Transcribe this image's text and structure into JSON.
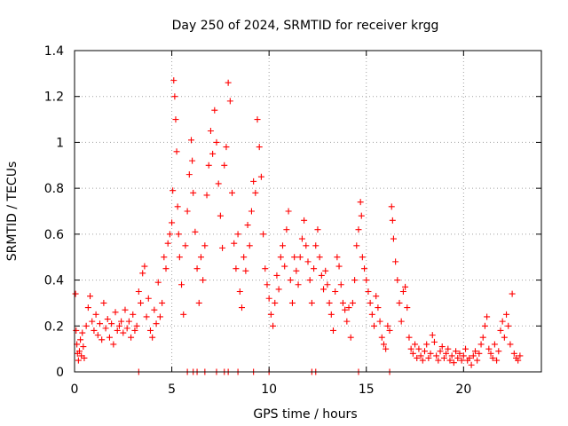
{
  "chart_data": {
    "type": "scatter",
    "title": "Day 250 of 2024, SRMTID for receiver krgg",
    "xlabel": "GPS time / hours",
    "ylabel": "SRMTID / TECUs",
    "xlim": [
      0,
      24
    ],
    "ylim": [
      0,
      1.4
    ],
    "xticks": [
      0,
      5,
      10,
      15,
      20
    ],
    "xtick_labels": [
      "0",
      "5",
      "10",
      "15",
      "20"
    ],
    "yticks": [
      0,
      0.2,
      0.4,
      0.6,
      0.8,
      1.0,
      1.2,
      1.4
    ],
    "ytick_labels": [
      "0",
      "0.2",
      "0.4",
      "0.6",
      "0.8",
      "1",
      "1.2",
      "1.4"
    ],
    "grid": true,
    "marker": "plus",
    "color": "#ff0000",
    "series": [
      {
        "name": "SRMTID",
        "points": [
          [
            0.05,
            0.34
          ],
          [
            0.08,
            0.18
          ],
          [
            0.12,
            0.12
          ],
          [
            0.15,
            0.08
          ],
          [
            0.2,
            0.05
          ],
          [
            0.25,
            0.09
          ],
          [
            0.3,
            0.14
          ],
          [
            0.35,
            0.07
          ],
          [
            0.4,
            0.17
          ],
          [
            0.45,
            0.11
          ],
          [
            0.5,
            0.06
          ],
          [
            0.6,
            0.2
          ],
          [
            0.7,
            0.28
          ],
          [
            0.8,
            0.33
          ],
          [
            0.9,
            0.22
          ],
          [
            1.0,
            0.18
          ],
          [
            1.1,
            0.25
          ],
          [
            1.2,
            0.16
          ],
          [
            1.3,
            0.21
          ],
          [
            1.4,
            0.14
          ],
          [
            1.5,
            0.3
          ],
          [
            1.6,
            0.19
          ],
          [
            1.7,
            0.23
          ],
          [
            1.8,
            0.15
          ],
          [
            1.9,
            0.21
          ],
          [
            2.0,
            0.12
          ],
          [
            2.1,
            0.26
          ],
          [
            2.2,
            0.18
          ],
          [
            2.3,
            0.2
          ],
          [
            2.4,
            0.22
          ],
          [
            2.5,
            0.17
          ],
          [
            2.6,
            0.27
          ],
          [
            2.7,
            0.19
          ],
          [
            2.8,
            0.22
          ],
          [
            2.9,
            0.15
          ],
          [
            3.0,
            0.25
          ],
          [
            3.1,
            0.18
          ],
          [
            3.2,
            0.2
          ],
          [
            3.3,
            0.35
          ],
          [
            3.4,
            0.3
          ],
          [
            3.5,
            0.43
          ],
          [
            3.6,
            0.46
          ],
          [
            3.7,
            0.24
          ],
          [
            3.8,
            0.32
          ],
          [
            3.9,
            0.18
          ],
          [
            4.0,
            0.15
          ],
          [
            4.1,
            0.27
          ],
          [
            4.2,
            0.21
          ],
          [
            4.3,
            0.39
          ],
          [
            4.4,
            0.24
          ],
          [
            4.5,
            0.3
          ],
          [
            4.6,
            0.5
          ],
          [
            4.7,
            0.45
          ],
          [
            4.8,
            0.56
          ],
          [
            4.9,
            0.6
          ],
          [
            5.0,
            0.65
          ],
          [
            5.05,
            0.79
          ],
          [
            5.1,
            1.27
          ],
          [
            5.15,
            1.2
          ],
          [
            5.2,
            1.1
          ],
          [
            5.25,
            0.96
          ],
          [
            5.3,
            0.72
          ],
          [
            5.35,
            0.6
          ],
          [
            5.4,
            0.5
          ],
          [
            5.5,
            0.38
          ],
          [
            5.6,
            0.25
          ],
          [
            5.7,
            0.55
          ],
          [
            5.8,
            0.7
          ],
          [
            5.9,
            0.86
          ],
          [
            6.0,
            1.01
          ],
          [
            6.05,
            0.92
          ],
          [
            6.1,
            0.78
          ],
          [
            6.2,
            0.61
          ],
          [
            6.3,
            0.45
          ],
          [
            6.4,
            0.3
          ],
          [
            6.5,
            0.5
          ],
          [
            6.6,
            0.4
          ],
          [
            6.7,
            0.55
          ],
          [
            6.8,
            0.77
          ],
          [
            6.9,
            0.9
          ],
          [
            7.0,
            1.05
          ],
          [
            7.1,
            0.95
          ],
          [
            7.2,
            1.14
          ],
          [
            7.3,
            1.0
          ],
          [
            7.4,
            0.82
          ],
          [
            7.5,
            0.68
          ],
          [
            7.6,
            0.54
          ],
          [
            7.7,
            0.9
          ],
          [
            7.8,
            0.98
          ],
          [
            7.9,
            1.26
          ],
          [
            8.0,
            1.18
          ],
          [
            8.1,
            0.78
          ],
          [
            8.2,
            0.56
          ],
          [
            8.3,
            0.45
          ],
          [
            8.4,
            0.6
          ],
          [
            8.5,
            0.35
          ],
          [
            8.6,
            0.28
          ],
          [
            8.7,
            0.5
          ],
          [
            8.8,
            0.44
          ],
          [
            8.9,
            0.64
          ],
          [
            9.0,
            0.55
          ],
          [
            9.1,
            0.7
          ],
          [
            9.2,
            0.83
          ],
          [
            9.3,
            0.78
          ],
          [
            9.4,
            1.1
          ],
          [
            9.5,
            0.98
          ],
          [
            9.6,
            0.85
          ],
          [
            9.7,
            0.6
          ],
          [
            9.8,
            0.45
          ],
          [
            9.9,
            0.38
          ],
          [
            10.0,
            0.32
          ],
          [
            10.1,
            0.25
          ],
          [
            10.2,
            0.2
          ],
          [
            10.3,
            0.3
          ],
          [
            10.4,
            0.42
          ],
          [
            10.5,
            0.36
          ],
          [
            10.6,
            0.5
          ],
          [
            10.7,
            0.55
          ],
          [
            10.8,
            0.46
          ],
          [
            10.9,
            0.62
          ],
          [
            11.0,
            0.7
          ],
          [
            11.1,
            0.4
          ],
          [
            11.2,
            0.3
          ],
          [
            11.3,
            0.5
          ],
          [
            11.4,
            0.44
          ],
          [
            11.5,
            0.38
          ],
          [
            11.6,
            0.5
          ],
          [
            11.7,
            0.58
          ],
          [
            11.8,
            0.66
          ],
          [
            11.9,
            0.55
          ],
          [
            12.0,
            0.48
          ],
          [
            12.1,
            0.4
          ],
          [
            12.2,
            0.3
          ],
          [
            12.3,
            0.45
          ],
          [
            12.4,
            0.55
          ],
          [
            12.5,
            0.62
          ],
          [
            12.6,
            0.5
          ],
          [
            12.7,
            0.42
          ],
          [
            12.8,
            0.36
          ],
          [
            12.9,
            0.44
          ],
          [
            13.0,
            0.38
          ],
          [
            13.1,
            0.3
          ],
          [
            13.2,
            0.25
          ],
          [
            13.3,
            0.18
          ],
          [
            13.4,
            0.35
          ],
          [
            13.5,
            0.5
          ],
          [
            13.6,
            0.46
          ],
          [
            13.7,
            0.38
          ],
          [
            13.8,
            0.3
          ],
          [
            13.9,
            0.27
          ],
          [
            14.0,
            0.22
          ],
          [
            14.1,
            0.28
          ],
          [
            14.2,
            0.15
          ],
          [
            14.3,
            0.3
          ],
          [
            14.4,
            0.4
          ],
          [
            14.5,
            0.55
          ],
          [
            14.6,
            0.62
          ],
          [
            14.7,
            0.74
          ],
          [
            14.75,
            0.68
          ],
          [
            14.8,
            0.5
          ],
          [
            14.9,
            0.45
          ],
          [
            15.0,
            0.4
          ],
          [
            15.1,
            0.35
          ],
          [
            15.2,
            0.3
          ],
          [
            15.3,
            0.25
          ],
          [
            15.4,
            0.2
          ],
          [
            15.5,
            0.33
          ],
          [
            15.6,
            0.28
          ],
          [
            15.7,
            0.22
          ],
          [
            15.8,
            0.15
          ],
          [
            15.9,
            0.12
          ],
          [
            16.0,
            0.1
          ],
          [
            16.1,
            0.2
          ],
          [
            16.2,
            0.18
          ],
          [
            16.3,
            0.72
          ],
          [
            16.35,
            0.66
          ],
          [
            16.4,
            0.58
          ],
          [
            16.5,
            0.48
          ],
          [
            16.6,
            0.4
          ],
          [
            16.7,
            0.3
          ],
          [
            16.8,
            0.22
          ],
          [
            16.9,
            0.35
          ],
          [
            17.0,
            0.37
          ],
          [
            17.1,
            0.28
          ],
          [
            17.2,
            0.15
          ],
          [
            17.3,
            0.1
          ],
          [
            17.4,
            0.08
          ],
          [
            17.5,
            0.12
          ],
          [
            17.6,
            0.06
          ],
          [
            17.7,
            0.1
          ],
          [
            17.8,
            0.07
          ],
          [
            17.9,
            0.05
          ],
          [
            18.0,
            0.09
          ],
          [
            18.1,
            0.12
          ],
          [
            18.2,
            0.06
          ],
          [
            18.3,
            0.08
          ],
          [
            18.4,
            0.16
          ],
          [
            18.5,
            0.13
          ],
          [
            18.6,
            0.07
          ],
          [
            18.7,
            0.05
          ],
          [
            18.8,
            0.09
          ],
          [
            18.9,
            0.11
          ],
          [
            19.0,
            0.06
          ],
          [
            19.1,
            0.08
          ],
          [
            19.2,
            0.1
          ],
          [
            19.3,
            0.05
          ],
          [
            19.4,
            0.07
          ],
          [
            19.5,
            0.04
          ],
          [
            19.6,
            0.09
          ],
          [
            19.7,
            0.06
          ],
          [
            19.8,
            0.08
          ],
          [
            19.9,
            0.05
          ],
          [
            20.0,
            0.07
          ],
          [
            20.1,
            0.1
          ],
          [
            20.2,
            0.05
          ],
          [
            20.3,
            0.06
          ],
          [
            20.4,
            0.03
          ],
          [
            20.5,
            0.07
          ],
          [
            20.6,
            0.09
          ],
          [
            20.7,
            0.05
          ],
          [
            20.8,
            0.08
          ],
          [
            20.9,
            0.12
          ],
          [
            21.0,
            0.15
          ],
          [
            21.1,
            0.2
          ],
          [
            21.2,
            0.24
          ],
          [
            21.3,
            0.1
          ],
          [
            21.4,
            0.08
          ],
          [
            21.5,
            0.06
          ],
          [
            21.6,
            0.12
          ],
          [
            21.7,
            0.05
          ],
          [
            21.8,
            0.09
          ],
          [
            21.9,
            0.18
          ],
          [
            22.0,
            0.22
          ],
          [
            22.1,
            0.15
          ],
          [
            22.2,
            0.25
          ],
          [
            22.3,
            0.2
          ],
          [
            22.4,
            0.12
          ],
          [
            22.5,
            0.34
          ],
          [
            22.6,
            0.08
          ],
          [
            22.7,
            0.06
          ],
          [
            22.8,
            0.05
          ],
          [
            22.9,
            0.07
          ],
          [
            3.3,
            0.0
          ],
          [
            5.8,
            0.0
          ],
          [
            6.1,
            0.0
          ],
          [
            6.3,
            0.0
          ],
          [
            6.7,
            0.0
          ],
          [
            7.3,
            0.0
          ],
          [
            7.7,
            0.0
          ],
          [
            7.9,
            0.0
          ],
          [
            8.4,
            0.0
          ],
          [
            9.2,
            0.0
          ],
          [
            10.0,
            0.0
          ],
          [
            12.2,
            0.0
          ],
          [
            12.4,
            0.0
          ],
          [
            14.6,
            0.0
          ],
          [
            16.2,
            0.0
          ]
        ]
      }
    ]
  }
}
